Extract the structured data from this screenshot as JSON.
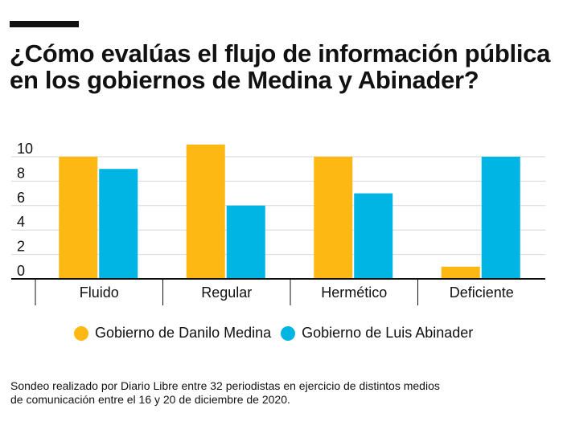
{
  "title": {
    "line1": "¿Cómo evalúas el flujo de información pública",
    "line2": "en los gobiernos de Medina y Abinader?"
  },
  "note": {
    "line1": "Sondeo realizado por Diario Libre entre 32 periodistas en ejercicio de distintos medios",
    "line2": "de comunicación entre el 16 y 20 de diciembre de 2020."
  },
  "legend": {
    "medina": "Gobierno de Danilo Medina",
    "abinader": "Gobierno de Luis Abinader"
  },
  "colors": {
    "medina": "#FDB813",
    "abinader": "#00B4E4",
    "grid": "#d6d6d6",
    "axis": "#111111"
  },
  "chart_data": {
    "type": "bar",
    "title": "¿Cómo evalúas el flujo de información pública en los gobiernos de Medina y Abinader?",
    "categories": [
      "Fluido",
      "Regular",
      "Hermético",
      "Deficiente"
    ],
    "series": [
      {
        "name": "Gobierno de Danilo Medina",
        "values": [
          10,
          11,
          10,
          1
        ]
      },
      {
        "name": "Gobierno de Luis Abinader",
        "values": [
          9,
          6,
          7,
          10
        ]
      }
    ],
    "yticks": [
      0,
      2,
      4,
      6,
      8,
      10
    ],
    "ylim": [
      0,
      11
    ],
    "grid": true,
    "legend_position": "bottom"
  }
}
